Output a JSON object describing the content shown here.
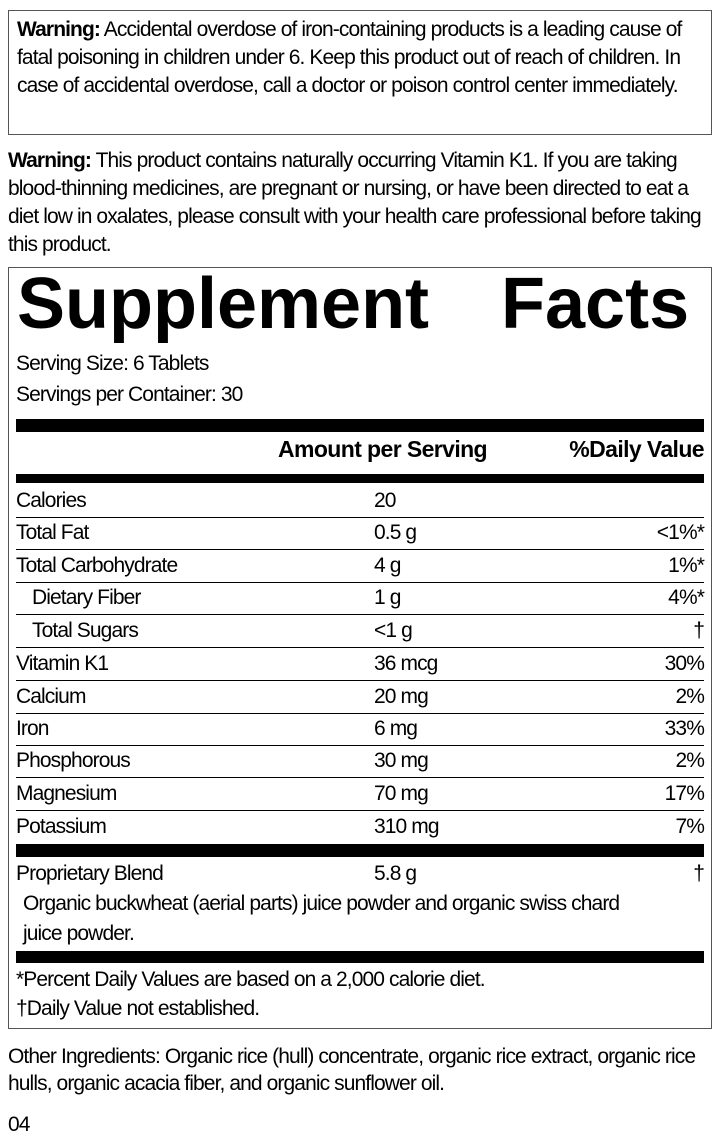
{
  "warning1": {
    "label": "Warning:",
    "text": " Accidental overdose of iron-containing products is a leading cause of fatal poisoning in children under 6. Keep this product out of reach of children. In case of accidental overdose, call a doctor or poison control center immediately."
  },
  "warning2": {
    "label": "Warning:",
    "text": " This product contains naturally occurring Vitamin K1. If you are taking blood-thinning medicines, are pregnant or nursing, or have been directed to eat a diet low in oxalates, please consult with your health care professional before taking this product."
  },
  "facts": {
    "title": "Supplement Facts",
    "serving_size": "Serving Size: 6 Tablets",
    "servings_per_container": "Servings per Container: 30",
    "col_amount": "Amount per Serving",
    "col_dv": "%Daily Value",
    "rows": [
      {
        "name": "Calories",
        "amount": "20",
        "dv": ""
      },
      {
        "name": "Total Fat",
        "amount": "0.5 g",
        "dv": "<1%*"
      },
      {
        "name": "Total Carbohydrate",
        "amount": "4 g",
        "dv": "1%*"
      },
      {
        "name": "Dietary Fiber",
        "amount": "1 g",
        "dv": "4%*"
      },
      {
        "name": "Total Sugars",
        "amount": "<1 g",
        "dv": "†"
      },
      {
        "name": "Vitamin K1",
        "amount": "36 mcg",
        "dv": "30%"
      },
      {
        "name": "Calcium",
        "amount": "20 mg",
        "dv": "2%"
      },
      {
        "name": "Iron",
        "amount": "6 mg",
        "dv": "33%"
      },
      {
        "name": "Phosphorous",
        "amount": "30 mg",
        "dv": "2%"
      },
      {
        "name": "Magnesium",
        "amount": "70 mg",
        "dv": "17%"
      },
      {
        "name": "Potassium",
        "amount": "310 mg",
        "dv": "7%"
      }
    ],
    "blend": {
      "name": "Proprietary Blend",
      "amount": "5.8 g",
      "dv": "†",
      "line1": "Organic buckwheat (aerial parts) juice powder and organic swiss chard",
      "line2": "juice powder."
    },
    "footnote1": "*Percent Daily Values are based on a 2,000 calorie diet.",
    "footnote2": "†Daily Value not established."
  },
  "other_ingredients": "Other Ingredients: Organic rice (hull) concentrate, organic rice extract, organic rice hulls, organic acacia fiber, and organic sunflower oil.",
  "code": "04"
}
